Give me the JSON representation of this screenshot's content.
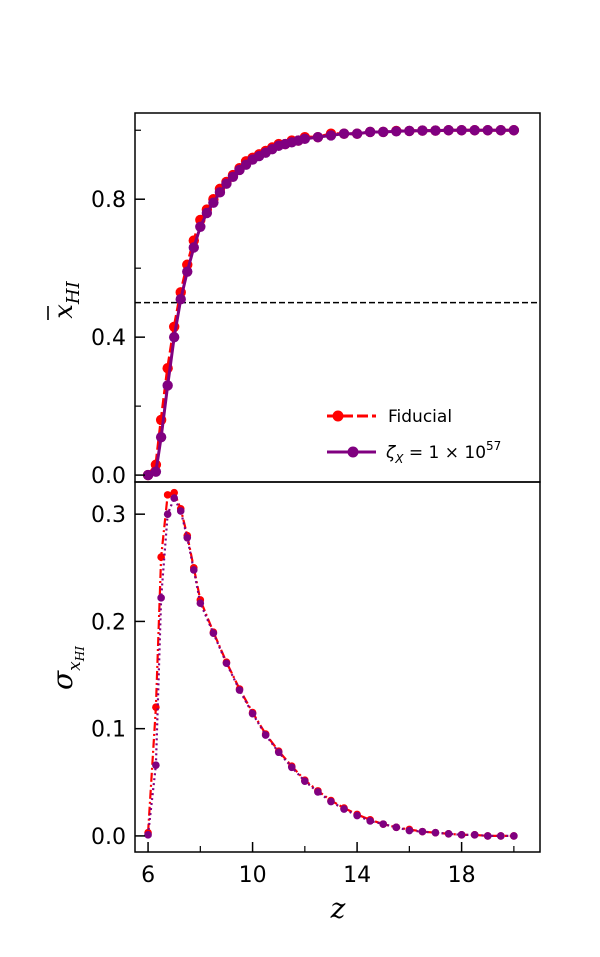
{
  "chart_data": [
    {
      "type": "line",
      "panel": "top",
      "ylabel_symbol": "x",
      "ylabel_subscript": "HI",
      "ylim": [
        -0.02,
        1.05
      ],
      "xlim": [
        5.5,
        21.0
      ],
      "yticks_major": [
        0.0,
        0.4,
        0.8
      ],
      "ytick_labels": [
        "0.0",
        "0.4",
        "0.8"
      ],
      "yticks_minor": [
        0.2,
        0.6,
        1.0
      ],
      "reference_line": {
        "y": 0.5,
        "style": "dashed",
        "color": "#000000"
      },
      "legend": {
        "placement": "lower-right",
        "entries": [
          {
            "label": "Fiducial"
          },
          {
            "label_prefix": "ζ",
            "label_sub": "X",
            "label_mid": " = 1 × 10",
            "label_sup": "57"
          }
        ]
      },
      "series": [
        {
          "name": "Fiducial",
          "color": "#ff0000",
          "style": "dashed",
          "x": [
            6.0,
            6.3,
            6.5,
            6.75,
            7.0,
            7.25,
            7.5,
            7.75,
            8.0,
            8.25,
            8.5,
            8.75,
            9.0,
            9.25,
            9.5,
            9.75,
            10.0,
            10.25,
            10.5,
            10.75,
            11.0,
            11.25,
            11.5,
            11.75,
            12.0,
            12.5,
            13.0,
            13.5,
            14.0,
            14.5,
            15.0,
            15.5,
            16.0,
            16.5,
            17.0,
            17.5,
            18.0,
            18.5,
            19.0,
            19.5,
            20.0
          ],
          "y": [
            0.0,
            0.03,
            0.16,
            0.31,
            0.43,
            0.53,
            0.61,
            0.68,
            0.74,
            0.77,
            0.8,
            0.83,
            0.85,
            0.87,
            0.89,
            0.91,
            0.92,
            0.93,
            0.94,
            0.95,
            0.96,
            0.96,
            0.97,
            0.97,
            0.98,
            0.98,
            0.99,
            0.99,
            0.99,
            0.995,
            0.995,
            0.998,
            0.998,
            0.999,
            0.999,
            1.0,
            1.0,
            1.0,
            1.0,
            1.0,
            1.0
          ]
        },
        {
          "name": "ζX = 1 × 10^57",
          "color": "#800080",
          "style": "solid",
          "x": [
            6.0,
            6.3,
            6.5,
            6.75,
            7.0,
            7.25,
            7.5,
            7.75,
            8.0,
            8.25,
            8.5,
            8.75,
            9.0,
            9.25,
            9.5,
            9.75,
            10.0,
            10.25,
            10.5,
            10.75,
            11.0,
            11.25,
            11.5,
            11.75,
            12.0,
            12.5,
            13.0,
            13.5,
            14.0,
            14.5,
            15.0,
            15.5,
            16.0,
            16.5,
            17.0,
            17.5,
            18.0,
            18.5,
            19.0,
            19.5,
            20.0
          ],
          "y": [
            0.0,
            0.01,
            0.11,
            0.26,
            0.4,
            0.51,
            0.59,
            0.66,
            0.72,
            0.76,
            0.79,
            0.82,
            0.845,
            0.865,
            0.885,
            0.9,
            0.915,
            0.925,
            0.935,
            0.945,
            0.955,
            0.96,
            0.965,
            0.97,
            0.975,
            0.98,
            0.985,
            0.99,
            0.99,
            0.995,
            0.995,
            0.997,
            0.998,
            0.999,
            0.999,
            1.0,
            1.0,
            1.0,
            1.0,
            1.0,
            1.0
          ]
        }
      ]
    },
    {
      "type": "line",
      "panel": "bottom",
      "ylabel_symbol": "σ",
      "ylabel_subscript": "x",
      "ylabel_subsubscript": "HI",
      "xlabel": "z",
      "ylim": [
        -0.015,
        0.33
      ],
      "xlim": [
        5.5,
        21.0
      ],
      "xticks_major": [
        6,
        10,
        14,
        18
      ],
      "xtick_labels": [
        "6",
        "10",
        "14",
        "18"
      ],
      "xticks_minor": [
        8,
        12,
        16,
        20
      ],
      "yticks_major": [
        0.0,
        0.1,
        0.2,
        0.3
      ],
      "ytick_labels": [
        "0.0",
        "0.1",
        "0.2",
        "0.3"
      ],
      "series": [
        {
          "name": "Fiducial",
          "color": "#ff0000",
          "style": "dashdot",
          "x": [
            6.0,
            6.3,
            6.5,
            6.75,
            7.0,
            7.25,
            7.5,
            7.75,
            8.0,
            8.5,
            9.0,
            9.5,
            10.0,
            10.5,
            11.0,
            11.5,
            12.0,
            12.5,
            13.0,
            13.5,
            14.0,
            14.5,
            15.0,
            15.5,
            16.0,
            16.5,
            17.0,
            17.5,
            18.0,
            18.5,
            19.0,
            19.5,
            20.0
          ],
          "y": [
            0.003,
            0.12,
            0.26,
            0.318,
            0.32,
            0.305,
            0.28,
            0.25,
            0.22,
            0.19,
            0.162,
            0.137,
            0.115,
            0.095,
            0.079,
            0.065,
            0.052,
            0.042,
            0.033,
            0.026,
            0.02,
            0.015,
            0.011,
            0.008,
            0.006,
            0.004,
            0.003,
            0.002,
            0.001,
            0.001,
            0.0,
            0.0,
            0.0
          ]
        },
        {
          "name": "ζX = 1 × 10^57",
          "color": "#800080",
          "style": "dotted",
          "x": [
            6.0,
            6.3,
            6.5,
            6.75,
            7.0,
            7.25,
            7.5,
            7.75,
            8.0,
            8.5,
            9.0,
            9.5,
            10.0,
            10.5,
            11.0,
            11.5,
            12.0,
            12.5,
            13.0,
            13.5,
            14.0,
            14.5,
            15.0,
            15.5,
            16.0,
            16.5,
            17.0,
            17.5,
            18.0,
            18.5,
            19.0,
            19.5,
            20.0
          ],
          "y": [
            0.001,
            0.066,
            0.222,
            0.3,
            0.315,
            0.303,
            0.278,
            0.248,
            0.217,
            0.189,
            0.161,
            0.136,
            0.114,
            0.094,
            0.078,
            0.064,
            0.051,
            0.041,
            0.032,
            0.025,
            0.019,
            0.014,
            0.011,
            0.008,
            0.005,
            0.004,
            0.003,
            0.002,
            0.001,
            0.001,
            0.0,
            0.0,
            0.0
          ]
        }
      ]
    }
  ]
}
